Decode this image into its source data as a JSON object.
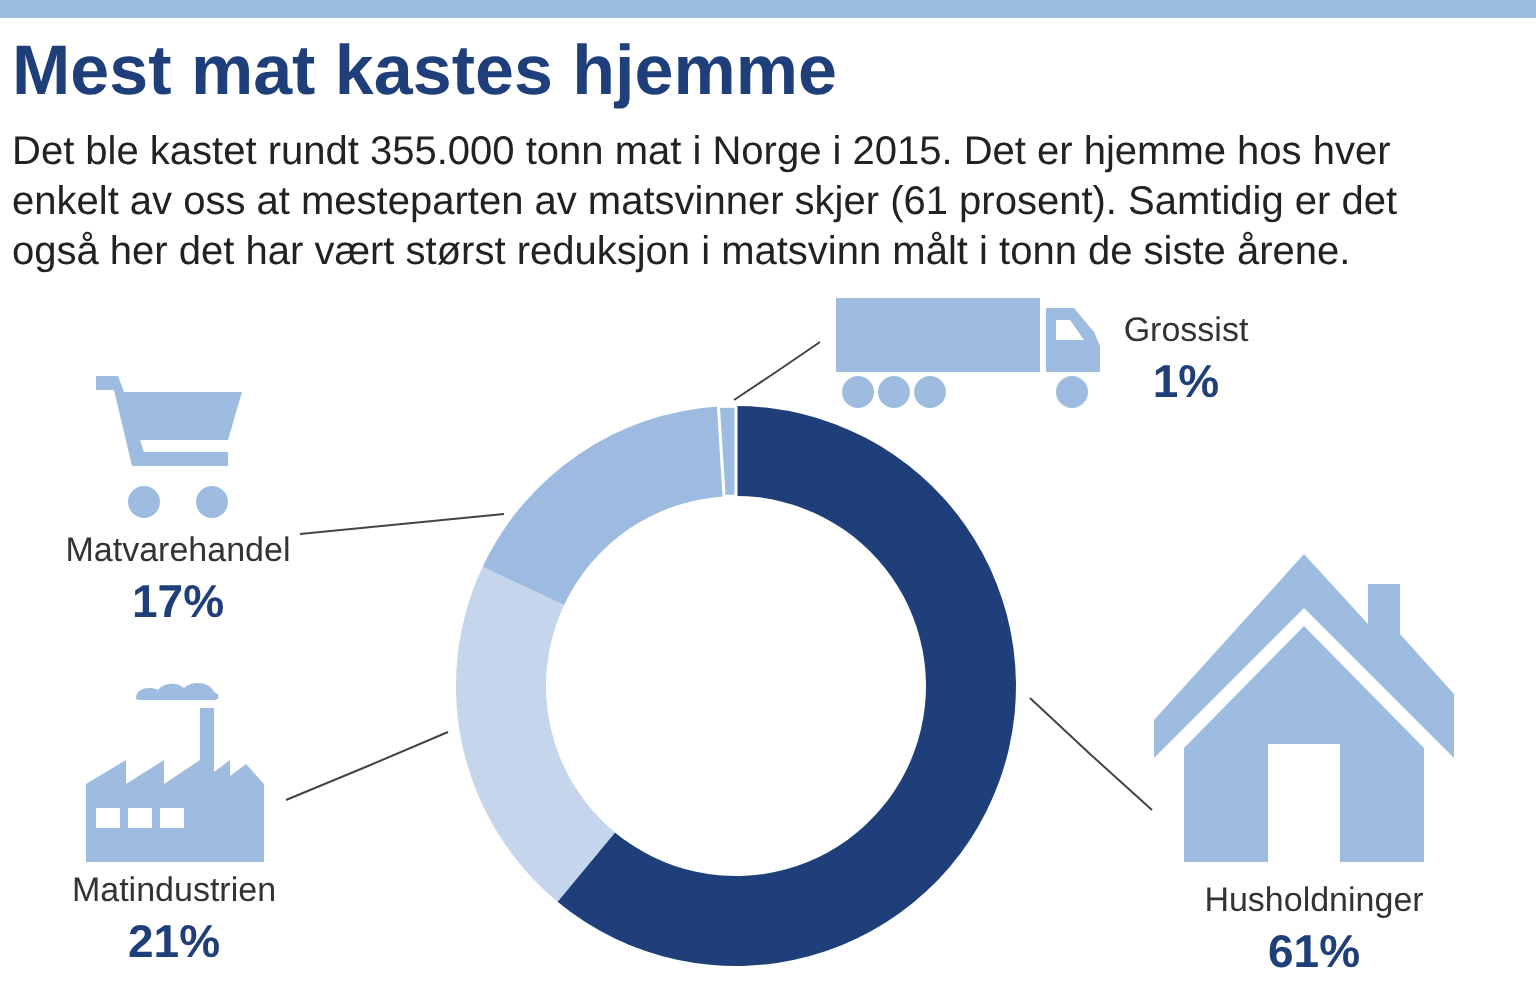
{
  "chart_data": {
    "type": "donut",
    "title": "Mest mat kastes hjemme",
    "subtitle": "Det ble kastet rundt 355.000 tonn mat i Norge i 2015. Det er hjemme hos hver enkelt av oss at mesteparten av matsvinner skjer (61 prosent). Samtidig er det også her det har vært størst reduksjon i matsvinn målt i tonn de siste årene.",
    "categories": [
      "Husholdninger",
      "Matindustrien",
      "Matvarehandel",
      "Grossist"
    ],
    "values": [
      61,
      21,
      17,
      1
    ],
    "colors": [
      "#1f3f7a",
      "#c5d5ec",
      "#9dbbe1",
      "#9dbce0"
    ],
    "value_labels": [
      "61%",
      "21%",
      "17%",
      "1%"
    ]
  }
}
